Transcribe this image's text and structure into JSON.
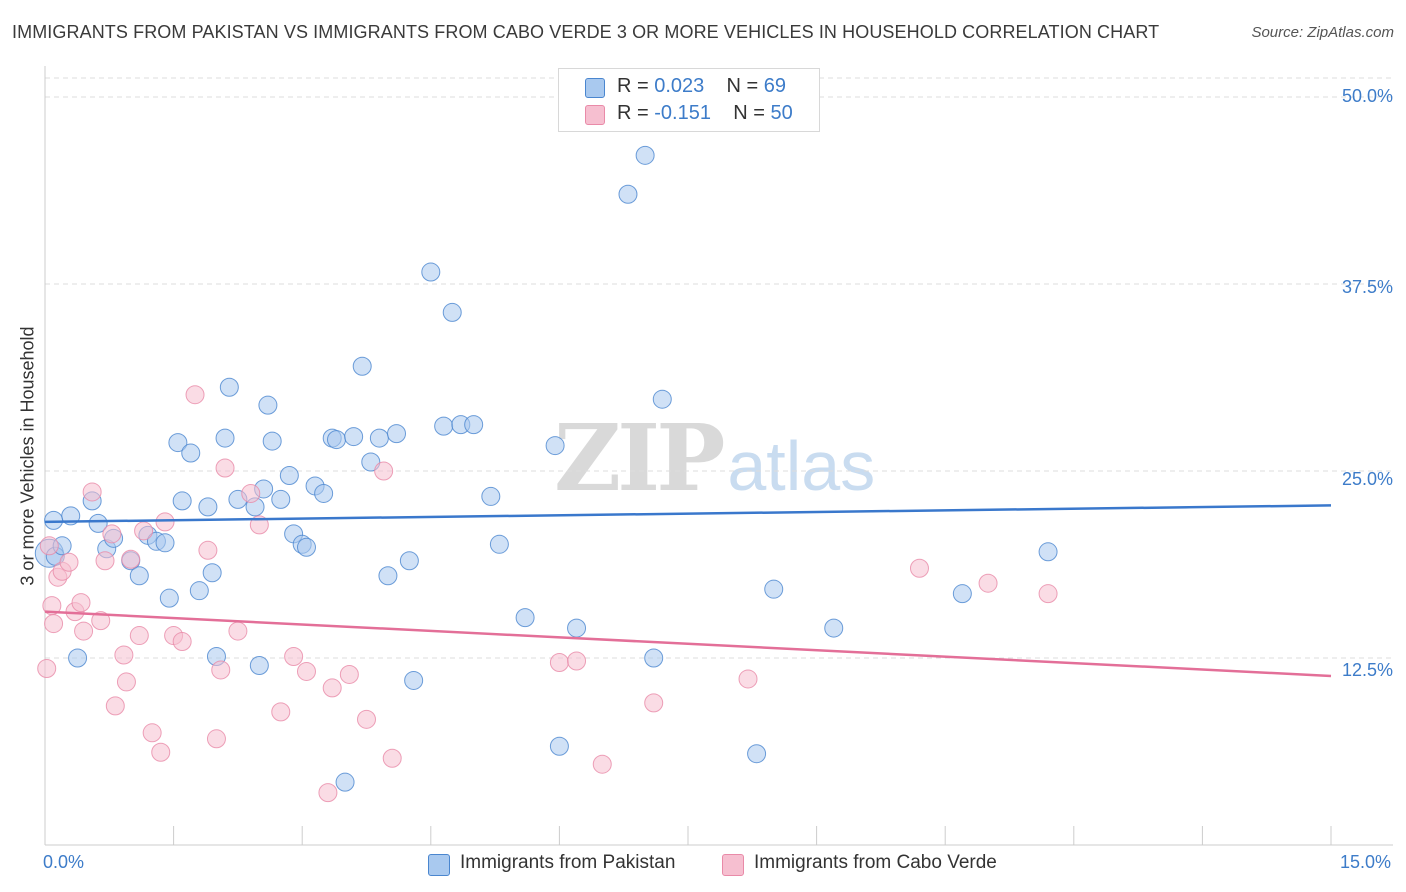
{
  "title": "IMMIGRANTS FROM PAKISTAN VS IMMIGRANTS FROM CABO VERDE 3 OR MORE VEHICLES IN HOUSEHOLD CORRELATION CHART",
  "source": "Source: ZipAtlas.com",
  "legend": {
    "pakistan": {
      "r_label": "R = ",
      "r_value": "0.023",
      "n_label": "N = ",
      "n_value": "69"
    },
    "cabo_verde": {
      "r_label": "R = ",
      "r_value": "-0.151",
      "n_label": "N = ",
      "n_value": "50"
    }
  },
  "watermark": {
    "zip": "ZIP",
    "atlas": "atlas"
  },
  "colors": {
    "pakistan_fill": "#a9c9ef",
    "pakistan_stroke": "#4a86cf",
    "pakistan_line": "#3a78cc",
    "cabo_fill": "#f6bfd0",
    "cabo_stroke": "#e98aa8",
    "cabo_line": "#e36f98",
    "tick_label": "#3d7cc9",
    "grid": "#dddddd"
  },
  "chart_data": {
    "type": "scatter",
    "title": "IMMIGRANTS FROM PAKISTAN VS IMMIGRANTS FROM CABO VERDE 3 OR MORE VEHICLES IN HOUSEHOLD CORRELATION CHART",
    "xlabel": "",
    "ylabel": "3 or more Vehicles in Household",
    "xlim": [
      0,
      15
    ],
    "ylim": [
      0,
      50
    ],
    "x_tick_labels": [
      "0.0%",
      "15.0%"
    ],
    "y_ticks": [
      12.5,
      25.0,
      37.5,
      50.0
    ],
    "y_tick_labels": [
      "12.5%",
      "25.0%",
      "37.5%",
      "50.0%"
    ],
    "grid": true,
    "legend_position": "top-center",
    "series": [
      {
        "name": "Immigrants from Pakistan",
        "r": 0.023,
        "n": 69,
        "trend": {
          "x": [
            0,
            15
          ],
          "y": [
            21.6,
            22.7
          ]
        },
        "points": [
          [
            0.05,
            19.5
          ],
          [
            0.12,
            19.3
          ],
          [
            0.2,
            20.0
          ],
          [
            0.3,
            22.0
          ],
          [
            0.38,
            12.5
          ],
          [
            0.55,
            23.0
          ],
          [
            0.62,
            21.5
          ],
          [
            0.72,
            19.8
          ],
          [
            0.8,
            20.5
          ],
          [
            1.0,
            19.0
          ],
          [
            1.1,
            18.0
          ],
          [
            1.2,
            20.7
          ],
          [
            1.3,
            20.3
          ],
          [
            1.4,
            20.2
          ],
          [
            1.45,
            16.5
          ],
          [
            1.55,
            26.9
          ],
          [
            1.6,
            23.0
          ],
          [
            1.7,
            26.2
          ],
          [
            1.8,
            17.0
          ],
          [
            1.9,
            22.6
          ],
          [
            1.95,
            18.2
          ],
          [
            2.0,
            12.6
          ],
          [
            2.1,
            27.2
          ],
          [
            2.15,
            30.6
          ],
          [
            2.25,
            23.1
          ],
          [
            2.45,
            22.6
          ],
          [
            2.5,
            12.0
          ],
          [
            2.55,
            23.8
          ],
          [
            2.6,
            29.4
          ],
          [
            2.65,
            27.0
          ],
          [
            2.75,
            23.1
          ],
          [
            2.85,
            24.7
          ],
          [
            2.9,
            20.8
          ],
          [
            3.0,
            20.1
          ],
          [
            3.05,
            19.9
          ],
          [
            3.15,
            24.0
          ],
          [
            3.25,
            23.5
          ],
          [
            3.35,
            27.2
          ],
          [
            3.4,
            27.1
          ],
          [
            3.5,
            4.2
          ],
          [
            3.6,
            27.3
          ],
          [
            3.7,
            32.0
          ],
          [
            3.8,
            25.6
          ],
          [
            3.9,
            27.2
          ],
          [
            4.0,
            18.0
          ],
          [
            4.1,
            27.5
          ],
          [
            4.25,
            19.0
          ],
          [
            4.3,
            11.0
          ],
          [
            4.5,
            38.3
          ],
          [
            4.65,
            28.0
          ],
          [
            4.75,
            35.6
          ],
          [
            4.85,
            28.1
          ],
          [
            5.0,
            28.1
          ],
          [
            5.2,
            23.3
          ],
          [
            5.3,
            20.1
          ],
          [
            5.6,
            15.2
          ],
          [
            5.95,
            26.7
          ],
          [
            6.0,
            6.6
          ],
          [
            6.2,
            14.5
          ],
          [
            6.8,
            43.5
          ],
          [
            7.0,
            46.1
          ],
          [
            7.1,
            12.5
          ],
          [
            7.2,
            29.8
          ],
          [
            8.3,
            6.1
          ],
          [
            8.5,
            17.1
          ],
          [
            9.2,
            14.5
          ],
          [
            10.7,
            16.8
          ],
          [
            11.7,
            19.6
          ],
          [
            0.1,
            21.7
          ]
        ]
      },
      {
        "name": "Immigrants from Cabo Verde",
        "r": -0.151,
        "n": 50,
        "trend": {
          "x": [
            0,
            15
          ],
          "y": [
            15.6,
            11.3
          ]
        },
        "points": [
          [
            0.02,
            11.8
          ],
          [
            0.08,
            16.0
          ],
          [
            0.1,
            14.8
          ],
          [
            0.15,
            17.9
          ],
          [
            0.2,
            18.3
          ],
          [
            0.28,
            18.9
          ],
          [
            0.35,
            15.6
          ],
          [
            0.42,
            16.2
          ],
          [
            0.45,
            14.3
          ],
          [
            0.55,
            23.6
          ],
          [
            0.65,
            15.0
          ],
          [
            0.7,
            19.0
          ],
          [
            0.78,
            20.8
          ],
          [
            0.82,
            9.3
          ],
          [
            0.92,
            12.7
          ],
          [
            0.95,
            10.9
          ],
          [
            1.0,
            19.1
          ],
          [
            1.1,
            14.0
          ],
          [
            1.15,
            21.0
          ],
          [
            1.25,
            7.5
          ],
          [
            1.35,
            6.2
          ],
          [
            1.4,
            21.6
          ],
          [
            1.5,
            14.0
          ],
          [
            1.6,
            13.6
          ],
          [
            1.75,
            30.1
          ],
          [
            1.9,
            19.7
          ],
          [
            2.0,
            7.1
          ],
          [
            2.05,
            11.7
          ],
          [
            2.1,
            25.2
          ],
          [
            2.25,
            14.3
          ],
          [
            2.4,
            23.5
          ],
          [
            2.5,
            21.4
          ],
          [
            2.75,
            8.9
          ],
          [
            2.9,
            12.6
          ],
          [
            3.05,
            11.6
          ],
          [
            3.3,
            3.5
          ],
          [
            3.35,
            10.5
          ],
          [
            3.55,
            11.4
          ],
          [
            3.75,
            8.4
          ],
          [
            3.95,
            25.0
          ],
          [
            4.05,
            5.8
          ],
          [
            6.0,
            12.2
          ],
          [
            6.2,
            12.3
          ],
          [
            6.5,
            5.4
          ],
          [
            7.1,
            9.5
          ],
          [
            8.2,
            11.1
          ],
          [
            10.2,
            18.5
          ],
          [
            11.0,
            17.5
          ],
          [
            11.7,
            16.8
          ],
          [
            0.05,
            20.0
          ]
        ]
      }
    ]
  },
  "bottom_legend": {
    "pakistan": "Immigrants from Pakistan",
    "cabo_verde": "Immigrants from Cabo Verde"
  }
}
